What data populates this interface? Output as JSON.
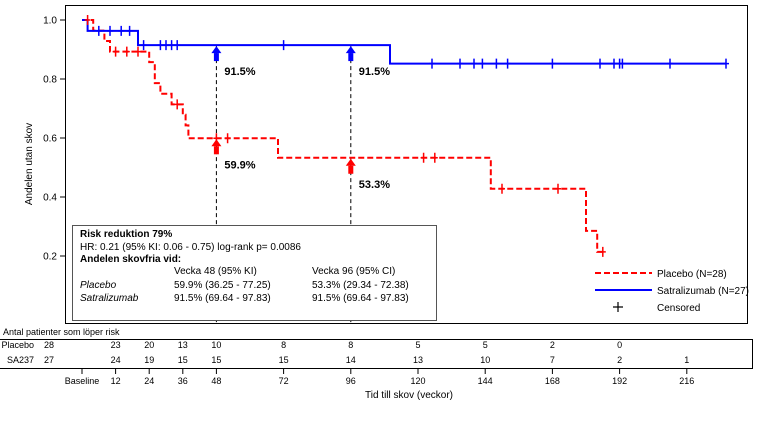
{
  "chart_data": {
    "type": "line",
    "subtype": "kaplan-meier",
    "title": "",
    "xlabel": "Tid till skov (veckor)",
    "ylabel": "Andelen utan skov",
    "xlim": [
      0,
      232
    ],
    "ylim": [
      0,
      1.04
    ],
    "xticks": [
      0,
      12,
      24,
      36,
      48,
      72,
      96,
      120,
      144,
      168,
      192,
      216
    ],
    "xtick_labels": [
      "Baseline",
      "12",
      "24",
      "36",
      "48",
      "72",
      "96",
      "120",
      "144",
      "168",
      "192",
      "216"
    ],
    "yticks": [
      0.2,
      0.4,
      0.6,
      0.8,
      1.0
    ],
    "ytick_labels": [
      "0.2",
      "0.4",
      "0.6",
      "0.8",
      "1.0"
    ],
    "series": [
      {
        "name": "Placebo (N=28)",
        "color": "#ff0000",
        "style": "dashed",
        "steps": [
          [
            0,
            1.0
          ],
          [
            4,
            0.964
          ],
          [
            8,
            0.929
          ],
          [
            10,
            0.893
          ],
          [
            24,
            0.857
          ],
          [
            26,
            0.786
          ],
          [
            28,
            0.75
          ],
          [
            32,
            0.714
          ],
          [
            36,
            0.679
          ],
          [
            37,
            0.643
          ],
          [
            38,
            0.599
          ],
          [
            70,
            0.533
          ],
          [
            146,
            0.428
          ],
          [
            180,
            0.285
          ],
          [
            184,
            0.214
          ]
        ],
        "end_x": 187,
        "censored": [
          [
            2,
            1.0
          ],
          [
            12,
            0.893
          ],
          [
            16,
            0.893
          ],
          [
            20,
            0.893
          ],
          [
            34,
            0.714
          ],
          [
            48,
            0.599
          ],
          [
            52,
            0.599
          ],
          [
            122,
            0.533
          ],
          [
            126,
            0.533
          ],
          [
            150,
            0.428
          ],
          [
            170,
            0.428
          ],
          [
            186,
            0.214
          ]
        ]
      },
      {
        "name": "Satralizumab (N=27)",
        "color": "#0000ff",
        "style": "solid",
        "steps": [
          [
            0,
            1.0
          ],
          [
            2,
            0.963
          ],
          [
            20,
            0.915
          ],
          [
            110,
            0.852
          ]
        ],
        "end_x": 230,
        "censored": [
          [
            6,
            0.963
          ],
          [
            10,
            0.963
          ],
          [
            14,
            0.963
          ],
          [
            17,
            0.963
          ],
          [
            22,
            0.915
          ],
          [
            28,
            0.915
          ],
          [
            30,
            0.915
          ],
          [
            32,
            0.915
          ],
          [
            34,
            0.915
          ],
          [
            72,
            0.915
          ],
          [
            125,
            0.852
          ],
          [
            135,
            0.852
          ],
          [
            140,
            0.852
          ],
          [
            143,
            0.852
          ],
          [
            148,
            0.852
          ],
          [
            152,
            0.852
          ],
          [
            168,
            0.852
          ],
          [
            185,
            0.852
          ],
          [
            190,
            0.852
          ],
          [
            192,
            0.852
          ],
          [
            193,
            0.852
          ],
          [
            210,
            0.852
          ],
          [
            230,
            0.852
          ]
        ]
      }
    ],
    "censored_label": "Censored",
    "reference_lines": [
      {
        "x": 48,
        "placebo": 0.599,
        "satralizumab": 0.915,
        "placebo_label": "59.9%",
        "satralizumab_label": "91.5%"
      },
      {
        "x": 96,
        "placebo": 0.533,
        "satralizumab": 0.915,
        "placebo_label": "53.3%",
        "satralizumab_label": "91.5%"
      }
    ],
    "annotation_box": {
      "title": "Risk reduktion 79%",
      "line1": "HR: 0.21 (95% KI: 0.06 - 0.75) log-rank p= 0.0086",
      "line2": "Andelen skovfria vid:",
      "col1_header": "Vecka  48 (95% KI)",
      "col2_header": "Vecka  96 (95% CI)",
      "rows": [
        {
          "name": "Placebo",
          "col1": "59.9% (36.25 - 77.25)",
          "col2": "53.3% (29.34 - 72.38)"
        },
        {
          "name": "Satralizumab",
          "col1": "91.5% (69.64 - 97.83)",
          "col2": "91.5% (69.64 - 97.83)"
        }
      ]
    },
    "risk_table": {
      "title": "Antal patienter som löper risk",
      "rows": [
        {
          "name": "Placebo",
          "first": "28",
          "values": [
            "23",
            "20",
            "13",
            "10",
            "8",
            "8",
            "5",
            "5",
            "2",
            "0",
            ""
          ]
        },
        {
          "name": "SA237",
          "first": "27",
          "values": [
            "24",
            "19",
            "15",
            "15",
            "15",
            "14",
            "13",
            "10",
            "7",
            "2",
            "1"
          ]
        }
      ]
    }
  }
}
